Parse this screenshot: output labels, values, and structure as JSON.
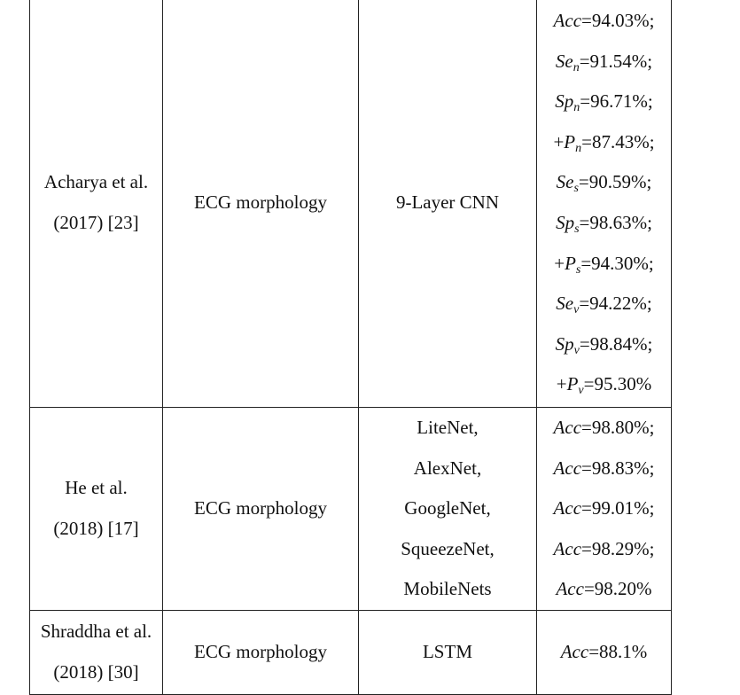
{
  "rows": [
    {
      "author": [
        "Acharya et al.",
        "(2017) [23]"
      ],
      "feature": "ECG morphology",
      "method": [
        "9-Layer CNN"
      ],
      "results": [
        {
          "prefix": "",
          "sym": "Acc",
          "sub": "",
          "text": "=94.03%;"
        },
        {
          "prefix": "",
          "sym": "Se",
          "sub": "n",
          "text": "=91.54%;"
        },
        {
          "prefix": "",
          "sym": "Sp",
          "sub": "n",
          "text": "=96.71%;"
        },
        {
          "prefix": "+",
          "sym": "P",
          "sub": "n",
          "text": "=87.43%;"
        },
        {
          "prefix": "",
          "sym": "Se",
          "sub": "s",
          "text": "=90.59%;"
        },
        {
          "prefix": "",
          "sym": "Sp",
          "sub": "s",
          "text": "=98.63%;"
        },
        {
          "prefix": "+",
          "sym": "P",
          "sub": "s",
          "text": "=94.30%;"
        },
        {
          "prefix": "",
          "sym": "Se",
          "sub": "v",
          "text": "=94.22%;"
        },
        {
          "prefix": "",
          "sym": "Sp",
          "sub": "v",
          "text": "=98.84%;"
        },
        {
          "prefix": "+",
          "sym": "P",
          "sub": "v",
          "text": "=95.30%"
        }
      ]
    },
    {
      "author": [
        "He et al.",
        "(2018) [17]"
      ],
      "feature": "ECG morphology",
      "method": [
        "LiteNet,",
        "AlexNet,",
        "GoogleNet,",
        "SqueezeNet,",
        "MobileNets"
      ],
      "results": [
        {
          "prefix": "",
          "sym": "Acc",
          "sub": "",
          "text": "=98.80%;"
        },
        {
          "prefix": "",
          "sym": "Acc",
          "sub": "",
          "text": "=98.83%;"
        },
        {
          "prefix": "",
          "sym": "Acc",
          "sub": "",
          "text": "=99.01%;"
        },
        {
          "prefix": "",
          "sym": "Acc",
          "sub": "",
          "text": "=98.29%;"
        },
        {
          "prefix": "",
          "sym": "Acc",
          "sub": "",
          "text": "=98.20%"
        }
      ]
    },
    {
      "author": [
        "Shraddha et al.",
        "(2018) [30]"
      ],
      "feature": "ECG morphology",
      "method": [
        "LSTM"
      ],
      "results": [
        {
          "prefix": "",
          "sym": "Acc",
          "sub": "",
          "text": "=88.1%"
        }
      ]
    }
  ]
}
